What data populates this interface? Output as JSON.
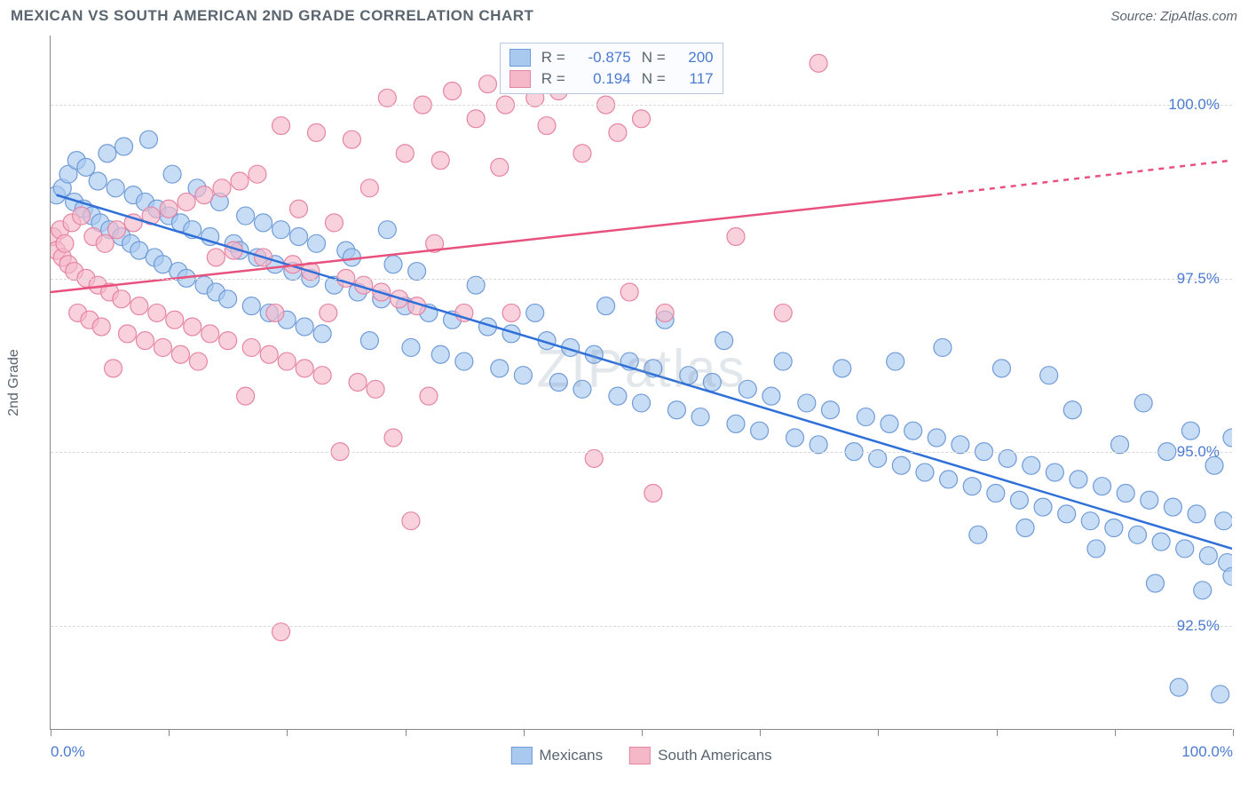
{
  "title": "MEXICAN VS SOUTH AMERICAN 2ND GRADE CORRELATION CHART",
  "source": "Source: ZipAtlas.com",
  "watermark": "ZIPatlas",
  "y_axis_title": "2nd Grade",
  "chart": {
    "type": "scatter",
    "background_color": "#ffffff",
    "grid_color": "#d8d8d8",
    "grid_dash": "6,5",
    "axis_color": "#888888",
    "xlim": [
      0,
      100
    ],
    "ylim": [
      91.0,
      101.0
    ],
    "x_ticks": [
      0,
      10,
      20,
      30,
      40,
      50,
      60,
      70,
      80,
      90,
      100
    ],
    "x_tick_labels": {
      "0": "0.0%",
      "100": "100.0%"
    },
    "y_gridlines": [
      92.5,
      95.0,
      97.5,
      100.0
    ],
    "y_tick_labels": [
      "92.5%",
      "95.0%",
      "97.5%",
      "100.0%"
    ],
    "label_color": "#4a7bd0",
    "label_fontsize": 17,
    "series": [
      {
        "name": "Mexicans",
        "marker_color": "#a9c9ef",
        "marker_border": "#6f9bd8",
        "marker_opacity": 0.65,
        "marker_radius": 10,
        "line_color": "#2e6fd8",
        "line_width": 2.5,
        "trend": {
          "x1": 0.5,
          "y1": 98.7,
          "x2": 100,
          "y2": 93.6
        },
        "R": "-0.875",
        "N": "200",
        "points": [
          [
            0.5,
            98.7
          ],
          [
            1,
            98.8
          ],
          [
            1.5,
            99.0
          ],
          [
            2,
            98.6
          ],
          [
            2.2,
            99.2
          ],
          [
            2.8,
            98.5
          ],
          [
            3,
            99.1
          ],
          [
            3.5,
            98.4
          ],
          [
            4,
            98.9
          ],
          [
            4.2,
            98.3
          ],
          [
            4.8,
            99.3
          ],
          [
            5,
            98.2
          ],
          [
            5.5,
            98.8
          ],
          [
            6,
            98.1
          ],
          [
            6.2,
            99.4
          ],
          [
            6.8,
            98.0
          ],
          [
            7,
            98.7
          ],
          [
            7.5,
            97.9
          ],
          [
            8,
            98.6
          ],
          [
            8.3,
            99.5
          ],
          [
            8.8,
            97.8
          ],
          [
            9,
            98.5
          ],
          [
            9.5,
            97.7
          ],
          [
            10,
            98.4
          ],
          [
            10.3,
            99.0
          ],
          [
            10.8,
            97.6
          ],
          [
            11,
            98.3
          ],
          [
            11.5,
            97.5
          ],
          [
            12,
            98.2
          ],
          [
            12.4,
            98.8
          ],
          [
            13,
            97.4
          ],
          [
            13.5,
            98.1
          ],
          [
            14,
            97.3
          ],
          [
            14.3,
            98.6
          ],
          [
            15,
            97.2
          ],
          [
            15.5,
            98.0
          ],
          [
            16,
            97.9
          ],
          [
            16.5,
            98.4
          ],
          [
            17,
            97.1
          ],
          [
            17.5,
            97.8
          ],
          [
            18,
            98.3
          ],
          [
            18.5,
            97.0
          ],
          [
            19,
            97.7
          ],
          [
            19.5,
            98.2
          ],
          [
            20,
            96.9
          ],
          [
            20.5,
            97.6
          ],
          [
            21,
            98.1
          ],
          [
            21.5,
            96.8
          ],
          [
            22,
            97.5
          ],
          [
            22.5,
            98.0
          ],
          [
            23,
            96.7
          ],
          [
            24,
            97.4
          ],
          [
            25,
            97.9
          ],
          [
            25.5,
            97.8
          ],
          [
            26,
            97.3
          ],
          [
            27,
            96.6
          ],
          [
            28,
            97.2
          ],
          [
            28.5,
            98.2
          ],
          [
            29,
            97.7
          ],
          [
            30,
            97.1
          ],
          [
            30.5,
            96.5
          ],
          [
            31,
            97.6
          ],
          [
            32,
            97.0
          ],
          [
            33,
            96.4
          ],
          [
            34,
            96.9
          ],
          [
            35,
            96.3
          ],
          [
            36,
            97.4
          ],
          [
            37,
            96.8
          ],
          [
            38,
            96.2
          ],
          [
            39,
            96.7
          ],
          [
            40,
            96.1
          ],
          [
            41,
            97.0
          ],
          [
            42,
            96.6
          ],
          [
            43,
            96.0
          ],
          [
            44,
            96.5
          ],
          [
            45,
            95.9
          ],
          [
            46,
            96.4
          ],
          [
            47,
            97.1
          ],
          [
            48,
            95.8
          ],
          [
            49,
            96.3
          ],
          [
            50,
            95.7
          ],
          [
            51,
            96.2
          ],
          [
            52,
            96.9
          ],
          [
            53,
            95.6
          ],
          [
            54,
            96.1
          ],
          [
            55,
            95.5
          ],
          [
            56,
            96.0
          ],
          [
            57,
            96.6
          ],
          [
            58,
            95.4
          ],
          [
            59,
            95.9
          ],
          [
            60,
            95.3
          ],
          [
            61,
            95.8
          ],
          [
            62,
            96.3
          ],
          [
            63,
            95.2
          ],
          [
            64,
            95.7
          ],
          [
            65,
            95.1
          ],
          [
            66,
            95.6
          ],
          [
            67,
            96.2
          ],
          [
            68,
            95.0
          ],
          [
            69,
            95.5
          ],
          [
            70,
            94.9
          ],
          [
            71,
            95.4
          ],
          [
            71.5,
            96.3
          ],
          [
            72,
            94.8
          ],
          [
            73,
            95.3
          ],
          [
            74,
            94.7
          ],
          [
            75,
            95.2
          ],
          [
            75.5,
            96.5
          ],
          [
            76,
            94.6
          ],
          [
            77,
            95.1
          ],
          [
            78,
            94.5
          ],
          [
            78.5,
            93.8
          ],
          [
            79,
            95.0
          ],
          [
            80,
            94.4
          ],
          [
            80.5,
            96.2
          ],
          [
            81,
            94.9
          ],
          [
            82,
            94.3
          ],
          [
            82.5,
            93.9
          ],
          [
            83,
            94.8
          ],
          [
            84,
            94.2
          ],
          [
            84.5,
            96.1
          ],
          [
            85,
            94.7
          ],
          [
            86,
            94.1
          ],
          [
            86.5,
            95.6
          ],
          [
            87,
            94.6
          ],
          [
            88,
            94.0
          ],
          [
            88.5,
            93.6
          ],
          [
            89,
            94.5
          ],
          [
            90,
            93.9
          ],
          [
            90.5,
            95.1
          ],
          [
            91,
            94.4
          ],
          [
            92,
            93.8
          ],
          [
            92.5,
            95.7
          ],
          [
            93,
            94.3
          ],
          [
            93.5,
            93.1
          ],
          [
            94,
            93.7
          ],
          [
            94.5,
            95.0
          ],
          [
            95,
            94.2
          ],
          [
            95.5,
            91.6
          ],
          [
            96,
            93.6
          ],
          [
            96.5,
            95.3
          ],
          [
            97,
            94.1
          ],
          [
            97.5,
            93.0
          ],
          [
            98,
            93.5
          ],
          [
            98.5,
            94.8
          ],
          [
            99,
            91.5
          ],
          [
            99.3,
            94.0
          ],
          [
            99.6,
            93.4
          ],
          [
            100,
            95.2
          ],
          [
            100,
            93.2
          ]
        ]
      },
      {
        "name": "South Americans",
        "marker_color": "#f5b8c9",
        "marker_border": "#e684a3",
        "marker_opacity": 0.65,
        "marker_radius": 10,
        "line_color": "#e8517e",
        "line_width": 2.5,
        "trend": {
          "x1": 0,
          "y1": 97.3,
          "x2": 75,
          "y2": 98.7
        },
        "trend_dashed": {
          "x1": 75,
          "y1": 98.7,
          "x2": 100,
          "y2": 99.2
        },
        "R": "0.194",
        "N": "117",
        "points": [
          [
            0.2,
            98.1
          ],
          [
            0.5,
            97.9
          ],
          [
            0.8,
            98.2
          ],
          [
            1,
            97.8
          ],
          [
            1.2,
            98.0
          ],
          [
            1.5,
            97.7
          ],
          [
            1.8,
            98.3
          ],
          [
            2,
            97.6
          ],
          [
            2.3,
            97.0
          ],
          [
            2.6,
            98.4
          ],
          [
            3,
            97.5
          ],
          [
            3.3,
            96.9
          ],
          [
            3.6,
            98.1
          ],
          [
            4,
            97.4
          ],
          [
            4.3,
            96.8
          ],
          [
            4.6,
            98.0
          ],
          [
            5,
            97.3
          ],
          [
            5.3,
            96.2
          ],
          [
            5.6,
            98.2
          ],
          [
            6,
            97.2
          ],
          [
            6.5,
            96.7
          ],
          [
            7,
            98.3
          ],
          [
            7.5,
            97.1
          ],
          [
            8,
            96.6
          ],
          [
            8.5,
            98.4
          ],
          [
            9,
            97.0
          ],
          [
            9.5,
            96.5
          ],
          [
            10,
            98.5
          ],
          [
            10.5,
            96.9
          ],
          [
            11,
            96.4
          ],
          [
            11.5,
            98.6
          ],
          [
            12,
            96.8
          ],
          [
            12.5,
            96.3
          ],
          [
            13,
            98.7
          ],
          [
            13.5,
            96.7
          ],
          [
            14,
            97.8
          ],
          [
            14.5,
            98.8
          ],
          [
            15,
            96.6
          ],
          [
            15.5,
            97.9
          ],
          [
            16,
            98.9
          ],
          [
            16.5,
            95.8
          ],
          [
            17,
            96.5
          ],
          [
            17.5,
            99.0
          ],
          [
            18,
            97.8
          ],
          [
            18.5,
            96.4
          ],
          [
            19,
            97.0
          ],
          [
            19.5,
            99.7
          ],
          [
            19.5,
            92.4
          ],
          [
            20,
            96.3
          ],
          [
            20.5,
            97.7
          ],
          [
            21,
            98.5
          ],
          [
            21.5,
            96.2
          ],
          [
            22,
            97.6
          ],
          [
            22.5,
            99.6
          ],
          [
            23,
            96.1
          ],
          [
            23.5,
            97.0
          ],
          [
            24,
            98.3
          ],
          [
            24.5,
            95.0
          ],
          [
            25,
            97.5
          ],
          [
            25.5,
            99.5
          ],
          [
            26,
            96.0
          ],
          [
            26.5,
            97.4
          ],
          [
            27,
            98.8
          ],
          [
            27.5,
            95.9
          ],
          [
            28,
            97.3
          ],
          [
            28.5,
            100.1
          ],
          [
            29,
            95.2
          ],
          [
            29.5,
            97.2
          ],
          [
            30,
            99.3
          ],
          [
            30.5,
            94.0
          ],
          [
            31,
            97.1
          ],
          [
            31.5,
            100.0
          ],
          [
            32,
            95.8
          ],
          [
            32.5,
            98.0
          ],
          [
            33,
            99.2
          ],
          [
            34,
            100.2
          ],
          [
            35,
            97.0
          ],
          [
            36,
            99.8
          ],
          [
            37,
            100.3
          ],
          [
            38,
            99.1
          ],
          [
            38.5,
            100.0
          ],
          [
            39,
            97.0
          ],
          [
            40,
            100.4
          ],
          [
            41,
            100.1
          ],
          [
            42,
            99.7
          ],
          [
            43,
            100.2
          ],
          [
            44,
            100.5
          ],
          [
            45,
            99.3
          ],
          [
            46,
            94.9
          ],
          [
            47,
            100.0
          ],
          [
            48,
            99.6
          ],
          [
            49,
            97.3
          ],
          [
            50,
            99.8
          ],
          [
            51,
            94.4
          ],
          [
            52,
            97.0
          ],
          [
            58,
            98.1
          ],
          [
            62,
            97.0
          ],
          [
            65,
            100.6
          ]
        ]
      }
    ]
  },
  "legend_top": {
    "rows": [
      {
        "swatch_fill": "#a9c9ef",
        "swatch_border": "#6f9bd8",
        "r_label": "R =",
        "r_value": "-0.875",
        "n_label": "N =",
        "n_value": "200"
      },
      {
        "swatch_fill": "#f5b8c9",
        "swatch_border": "#e684a3",
        "r_label": "R =",
        "r_value": "0.194",
        "n_label": "N =",
        "n_value": "117"
      }
    ]
  },
  "legend_bottom": [
    {
      "swatch_fill": "#a9c9ef",
      "swatch_border": "#6f9bd8",
      "label": "Mexicans"
    },
    {
      "swatch_fill": "#f5b8c9",
      "swatch_border": "#e684a3",
      "label": "South Americans"
    }
  ]
}
